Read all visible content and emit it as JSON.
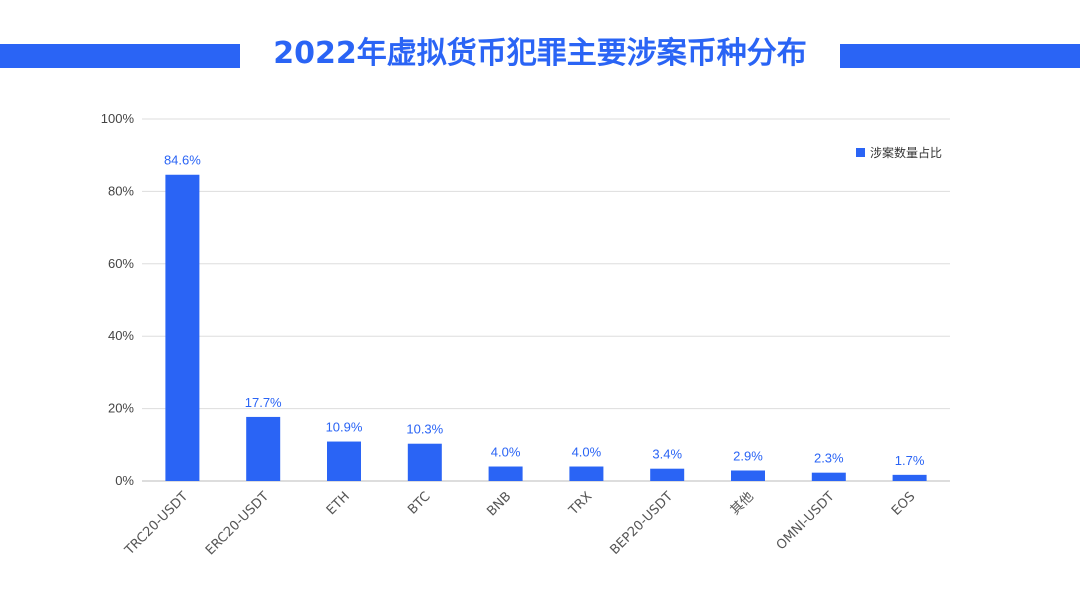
{
  "title": "2022年虚拟货币犯罪主要涉案币种分布",
  "colors": {
    "accent": "#2a64f5",
    "grid": "#dddddd",
    "axis": "#bbbbbb"
  },
  "chart_data": {
    "type": "bar",
    "categories": [
      "TRC20-USDT",
      "ERC20-USDT",
      "ETH",
      "BTC",
      "BNB",
      "TRX",
      "BEP20-USDT",
      "其他",
      "OMNI-USDT",
      "EOS"
    ],
    "series": [
      {
        "name": "涉案数量占比",
        "values": [
          84.6,
          17.7,
          10.9,
          10.3,
          4.0,
          4.0,
          3.4,
          2.9,
          2.3,
          1.7
        ]
      }
    ],
    "data_labels": [
      "84.6%",
      "17.7%",
      "10.9%",
      "10.3%",
      "4.0%",
      "4.0%",
      "3.4%",
      "2.9%",
      "2.3%",
      "1.7%"
    ],
    "yticks": [
      "0%",
      "20%",
      "40%",
      "60%",
      "80%",
      "100%"
    ],
    "ylim": [
      0,
      100
    ],
    "grid": true,
    "legend": "top-right"
  }
}
